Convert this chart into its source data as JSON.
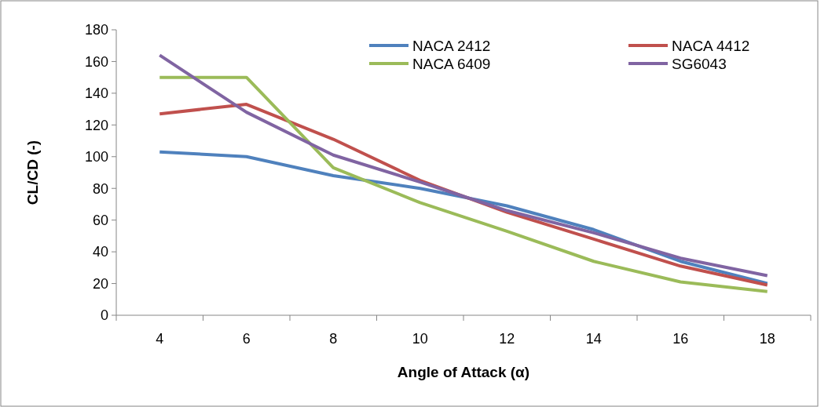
{
  "chart_data": {
    "type": "line",
    "xlabel": "Angle of Attack (α)",
    "ylabel": "CL/CD (-)",
    "categories": [
      "4",
      "6",
      "8",
      "10",
      "12",
      "14",
      "16",
      "18"
    ],
    "series": [
      {
        "name": "NACA 2412",
        "color": "#4f81bd",
        "values": [
          103,
          100,
          88,
          80,
          69,
          54,
          34,
          20
        ]
      },
      {
        "name": "NACA 4412",
        "color": "#c0504d",
        "values": [
          127,
          133,
          111,
          85,
          65,
          48,
          31,
          19
        ]
      },
      {
        "name": "NACA 6409",
        "color": "#9bbb59",
        "values": [
          150,
          150,
          93,
          71,
          53,
          34,
          21,
          15
        ]
      },
      {
        "name": "SG6043",
        "color": "#8064a2",
        "values": [
          164,
          128,
          101,
          84,
          66,
          52,
          36,
          25
        ]
      }
    ],
    "ylim": [
      0,
      180
    ],
    "yticks": [
      0,
      20,
      40,
      60,
      80,
      100,
      120,
      140,
      160,
      180
    ],
    "grid": false,
    "legend": "top right",
    "marker": "none",
    "line_style": "solid"
  }
}
